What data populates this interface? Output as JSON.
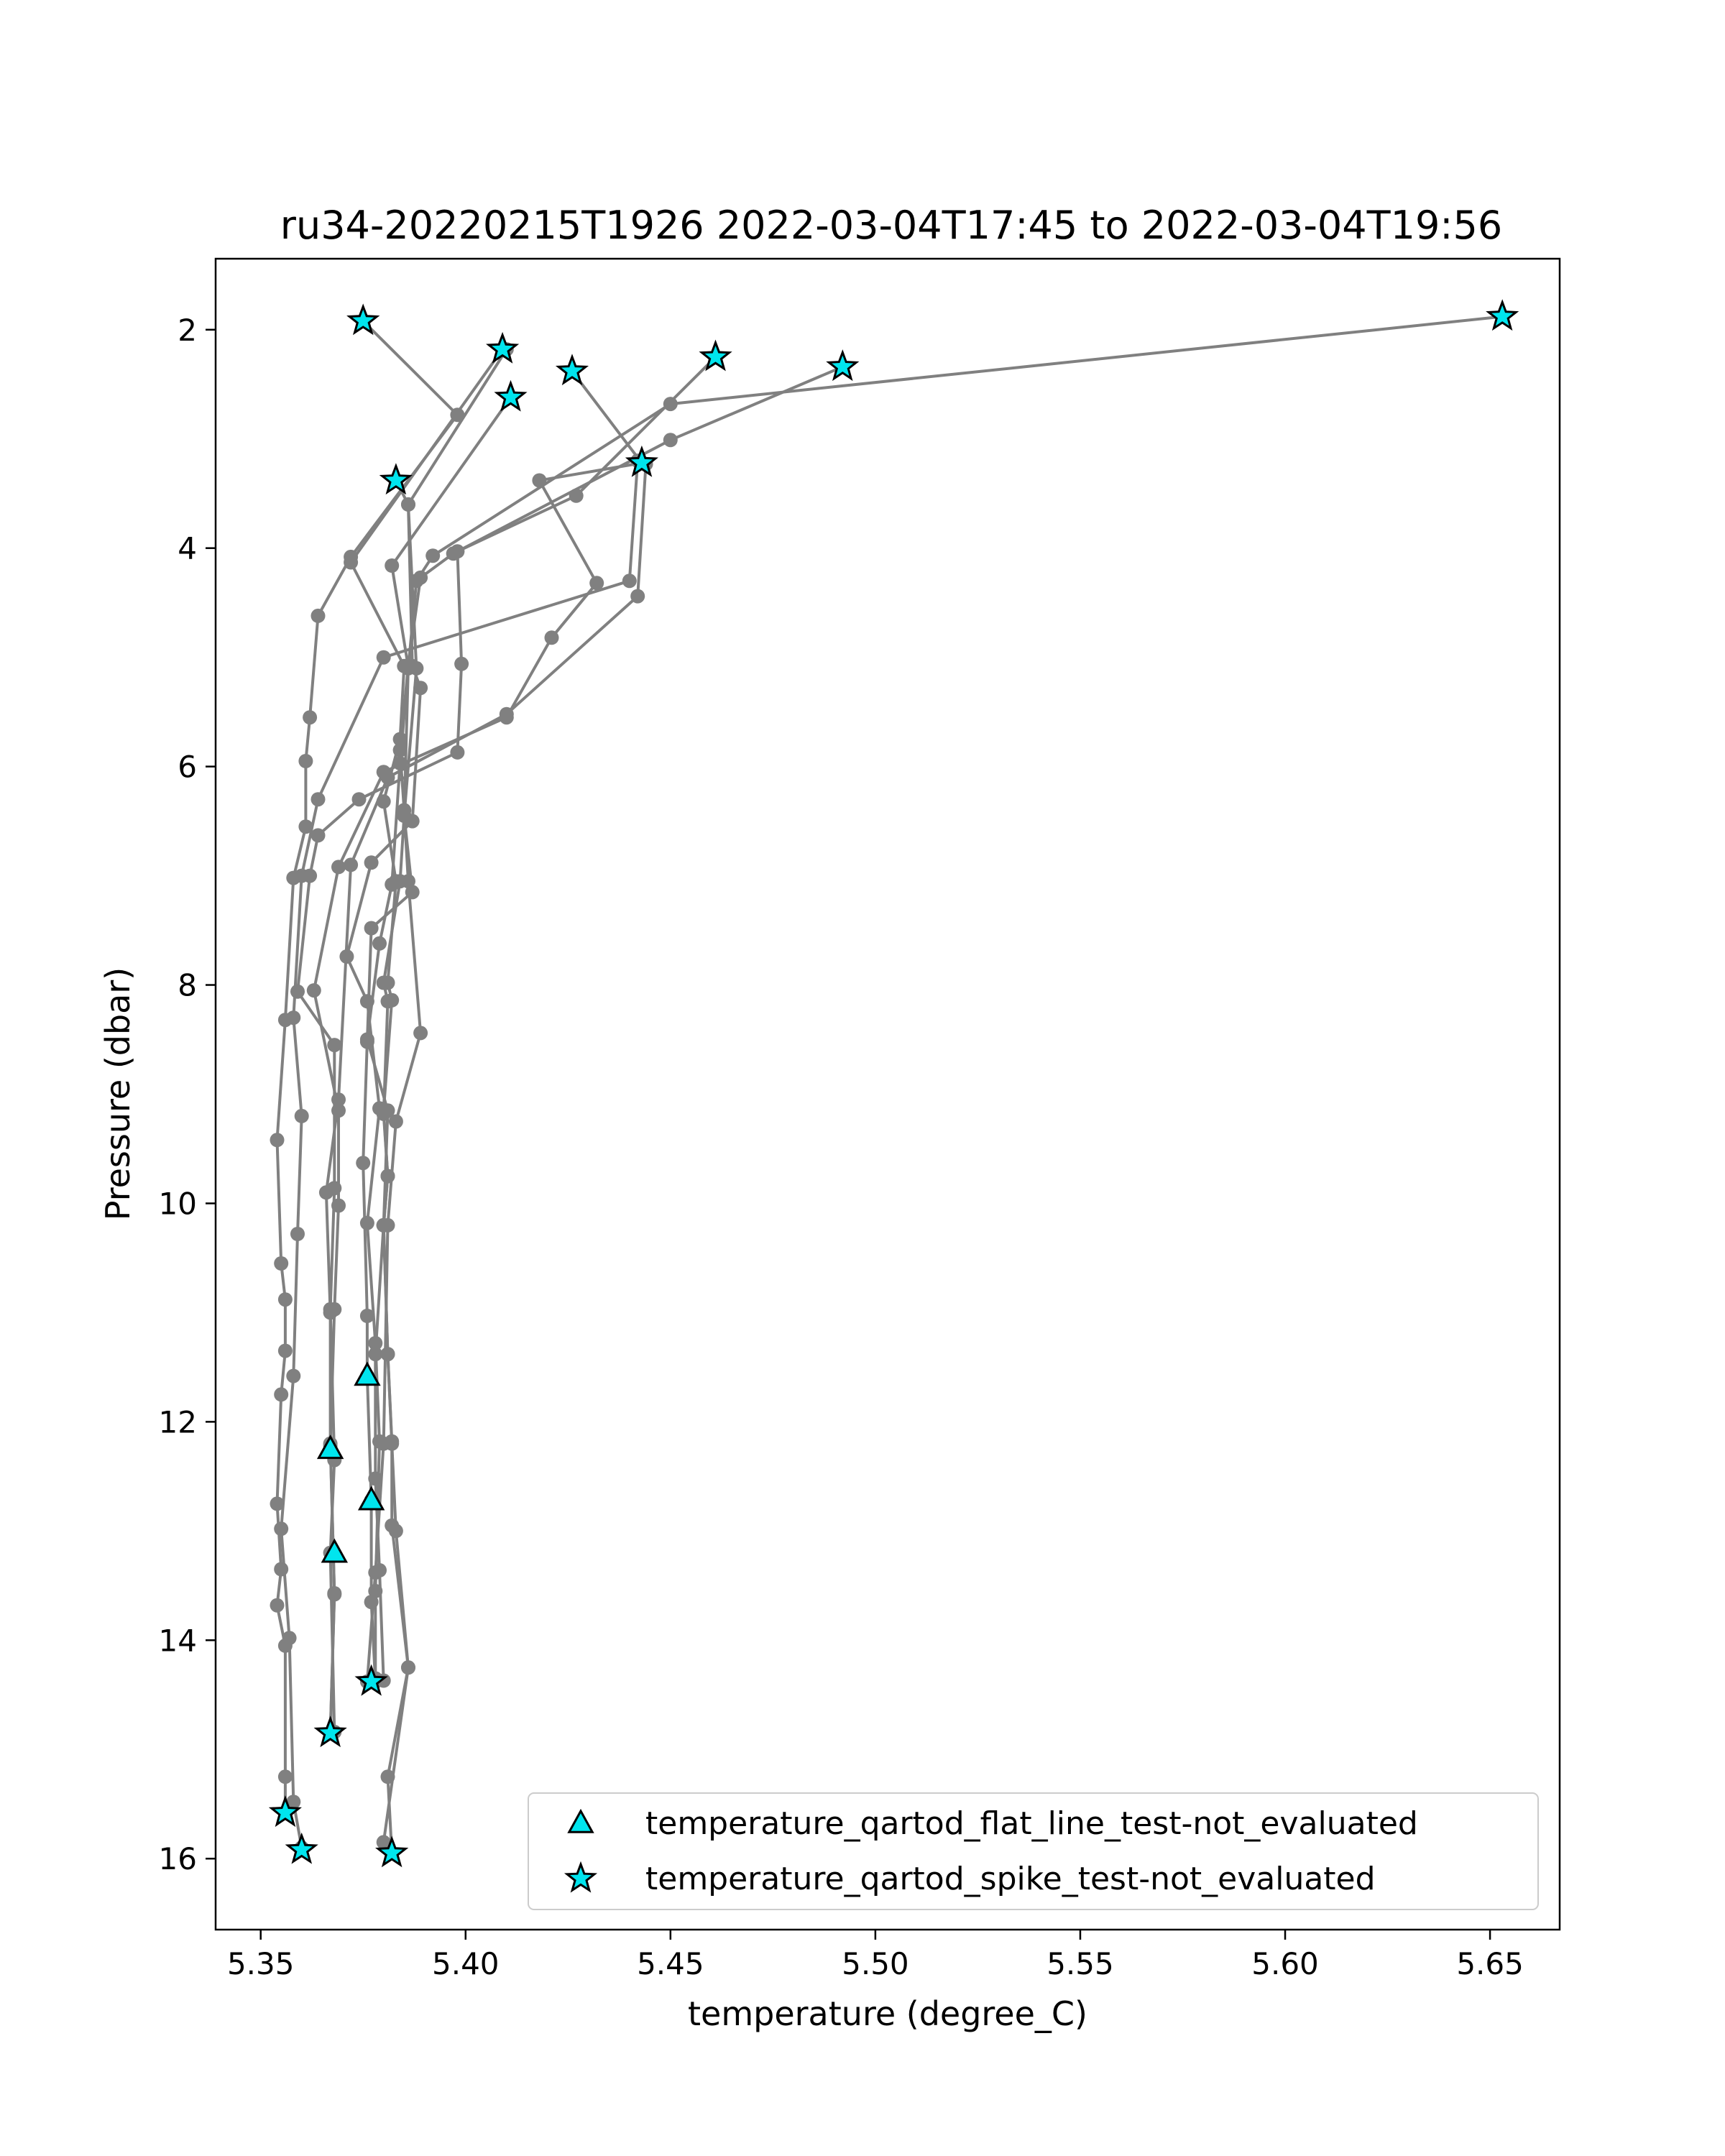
{
  "chart_data": {
    "type": "scatter",
    "title": "ru34-20220215T1926 2022-03-04T17:45 to 2022-03-04T19:56",
    "xlabel": "temperature (degree_C)",
    "ylabel": "Pressure (dbar)",
    "xlim": [
      5.339,
      5.667
    ],
    "ylim": [
      16.65,
      1.35
    ],
    "y_inverted": true,
    "x_ticks": [
      5.35,
      5.4,
      5.45,
      5.5,
      5.55,
      5.6,
      5.65
    ],
    "x_tick_labels": [
      "5.35",
      "5.40",
      "5.45",
      "5.50",
      "5.55",
      "5.60",
      "5.65"
    ],
    "y_ticks": [
      2,
      4,
      6,
      8,
      10,
      12,
      14,
      16
    ],
    "y_tick_labels": [
      "2",
      "4",
      "6",
      "8",
      "10",
      "12",
      "14",
      "16"
    ],
    "grid": false,
    "legend_position": "lower-right",
    "profile_color": "#808080",
    "flag_color": "#00e5ee",
    "profiles": [
      [
        [
          5.375,
          1.92
        ],
        [
          5.398,
          2.78
        ],
        [
          5.372,
          4.08
        ],
        [
          5.364,
          4.62
        ],
        [
          5.362,
          5.55
        ],
        [
          5.361,
          5.95
        ],
        [
          5.361,
          6.55
        ],
        [
          5.358,
          7.02
        ],
        [
          5.356,
          8.32
        ],
        [
          5.354,
          9.42
        ],
        [
          5.355,
          10.55
        ],
        [
          5.356,
          10.88
        ],
        [
          5.356,
          11.35
        ],
        [
          5.355,
          11.75
        ],
        [
          5.354,
          12.75
        ],
        [
          5.355,
          13.35
        ],
        [
          5.354,
          13.68
        ],
        [
          5.356,
          14.05
        ],
        [
          5.356,
          15.25
        ],
        [
          5.356,
          15.58
        ]
      ],
      [
        [
          5.409,
          2.18
        ],
        [
          5.372,
          4.13
        ],
        [
          5.385,
          5.08
        ],
        [
          5.384,
          5.75
        ],
        [
          5.38,
          6.32
        ],
        [
          5.383,
          7.05
        ],
        [
          5.381,
          7.98
        ],
        [
          5.382,
          8.14
        ],
        [
          5.38,
          9.15
        ],
        [
          5.381,
          9.75
        ],
        [
          5.38,
          10.2
        ],
        [
          5.381,
          11.38
        ],
        [
          5.382,
          12.18
        ],
        [
          5.382,
          12.95
        ],
        [
          5.386,
          14.25
        ],
        [
          5.381,
          15.25
        ],
        [
          5.382,
          15.95
        ]
      ],
      [
        [
          5.411,
          2.62
        ],
        [
          5.382,
          4.16
        ],
        [
          5.386,
          5.09
        ],
        [
          5.385,
          6.45
        ],
        [
          5.387,
          7.15
        ],
        [
          5.377,
          7.48
        ],
        [
          5.376,
          8.52
        ],
        [
          5.375,
          9.63
        ],
        [
          5.376,
          11.03
        ],
        [
          5.376,
          11.58
        ],
        [
          5.377,
          12.72
        ],
        [
          5.377,
          13.65
        ],
        [
          5.378,
          14.38
        ]
      ],
      [
        [
          5.383,
          3.38
        ],
        [
          5.386,
          3.6
        ],
        [
          5.387,
          5.08
        ],
        [
          5.389,
          5.28
        ],
        [
          5.387,
          6.5
        ],
        [
          5.377,
          6.88
        ],
        [
          5.371,
          7.74
        ],
        [
          5.376,
          8.15
        ],
        [
          5.379,
          9.13
        ],
        [
          5.376,
          10.18
        ],
        [
          5.378,
          11.28
        ],
        [
          5.379,
          12.18
        ],
        [
          5.378,
          13.55
        ],
        [
          5.378,
          14.35
        ]
      ],
      [
        [
          5.426,
          2.38
        ],
        [
          5.443,
          3.22
        ],
        [
          5.418,
          3.38
        ],
        [
          5.432,
          4.32
        ],
        [
          5.421,
          4.82
        ],
        [
          5.41,
          5.55
        ],
        [
          5.38,
          6.05
        ],
        [
          5.369,
          6.92
        ],
        [
          5.363,
          8.05
        ],
        [
          5.369,
          9.15
        ],
        [
          5.369,
          10.02
        ],
        [
          5.368,
          10.97
        ],
        [
          5.367,
          12.22
        ],
        [
          5.368,
          13.57
        ],
        [
          5.367,
          14.85
        ]
      ],
      [
        [
          5.461,
          2.25
        ],
        [
          5.427,
          3.52
        ],
        [
          5.398,
          4.03
        ],
        [
          5.399,
          5.06
        ],
        [
          5.398,
          5.87
        ],
        [
          5.374,
          6.3
        ],
        [
          5.364,
          6.63
        ],
        [
          5.362,
          7.0
        ],
        [
          5.359,
          8.06
        ],
        [
          5.368,
          8.55
        ],
        [
          5.368,
          9.86
        ],
        [
          5.367,
          10.97
        ],
        [
          5.368,
          12.35
        ],
        [
          5.367,
          13.2
        ],
        [
          5.368,
          14.84
        ]
      ],
      [
        [
          5.653,
          1.88
        ],
        [
          5.45,
          2.68
        ],
        [
          5.392,
          4.07
        ],
        [
          5.388,
          4.3
        ],
        [
          5.386,
          5.1
        ],
        [
          5.384,
          5.97
        ],
        [
          5.382,
          7.08
        ],
        [
          5.379,
          7.62
        ],
        [
          5.376,
          8.5
        ],
        [
          5.381,
          9.15
        ],
        [
          5.38,
          10.2
        ],
        [
          5.378,
          11.38
        ],
        [
          5.378,
          12.52
        ],
        [
          5.379,
          13.36
        ],
        [
          5.38,
          14.37
        ]
      ],
      [
        [
          5.492,
          2.34
        ],
        [
          5.45,
          3.01
        ],
        [
          5.397,
          4.05
        ],
        [
          5.389,
          4.27
        ],
        [
          5.386,
          5.08
        ],
        [
          5.384,
          5.85
        ],
        [
          5.385,
          6.4
        ],
        [
          5.386,
          7.05
        ],
        [
          5.389,
          8.44
        ],
        [
          5.383,
          9.25
        ],
        [
          5.381,
          10.2
        ],
        [
          5.38,
          12.2
        ],
        [
          5.378,
          13.38
        ],
        [
          5.376,
          14.38
        ]
      ],
      [
        [
          5.41,
          2.18
        ],
        [
          5.386,
          3.6
        ],
        [
          5.388,
          5.1
        ],
        [
          5.385,
          6.45
        ],
        [
          5.384,
          7.05
        ],
        [
          5.38,
          7.98
        ],
        [
          5.381,
          8.15
        ],
        [
          5.38,
          9.18
        ],
        [
          5.381,
          9.75
        ],
        [
          5.38,
          10.2
        ],
        [
          5.381,
          11.38
        ],
        [
          5.382,
          12.2
        ],
        [
          5.383,
          13.0
        ],
        [
          5.386,
          14.25
        ],
        [
          5.38,
          15.85
        ],
        [
          5.382,
          15.95
        ]
      ],
      [
        [
          5.442,
          3.2
        ],
        [
          5.44,
          4.3
        ],
        [
          5.38,
          5.0
        ],
        [
          5.364,
          6.3
        ],
        [
          5.36,
          7.0
        ],
        [
          5.358,
          8.3
        ],
        [
          5.36,
          9.2
        ],
        [
          5.359,
          10.28
        ],
        [
          5.358,
          11.58
        ],
        [
          5.355,
          12.98
        ],
        [
          5.357,
          13.98
        ],
        [
          5.358,
          15.48
        ],
        [
          5.36,
          15.9
        ]
      ],
      [
        [
          5.444,
          3.23
        ],
        [
          5.442,
          4.44
        ],
        [
          5.41,
          5.52
        ],
        [
          5.381,
          6.1
        ],
        [
          5.372,
          6.9
        ],
        [
          5.369,
          9.05
        ],
        [
          5.366,
          9.9
        ],
        [
          5.367,
          11.0
        ],
        [
          5.367,
          12.2
        ],
        [
          5.368,
          13.58
        ],
        [
          5.367,
          14.85
        ]
      ]
    ],
    "flat_line_flags": [
      [
        5.376,
        11.58
      ],
      [
        5.367,
        12.25
      ],
      [
        5.377,
        12.72
      ],
      [
        5.368,
        13.2
      ]
    ],
    "spike_flags": [
      [
        5.375,
        1.92
      ],
      [
        5.409,
        2.18
      ],
      [
        5.411,
        2.62
      ],
      [
        5.426,
        2.38
      ],
      [
        5.461,
        2.25
      ],
      [
        5.492,
        2.34
      ],
      [
        5.653,
        1.88
      ],
      [
        5.443,
        3.22
      ],
      [
        5.383,
        3.38
      ],
      [
        5.377,
        14.38
      ],
      [
        5.367,
        14.85
      ],
      [
        5.356,
        15.58
      ],
      [
        5.36,
        15.92
      ],
      [
        5.382,
        15.95
      ]
    ],
    "legend": [
      {
        "label": "temperature_qartod_flat_line_test-not_evaluated",
        "marker": "triangle"
      },
      {
        "label": "temperature_qartod_spike_test-not_evaluated",
        "marker": "star"
      }
    ]
  }
}
